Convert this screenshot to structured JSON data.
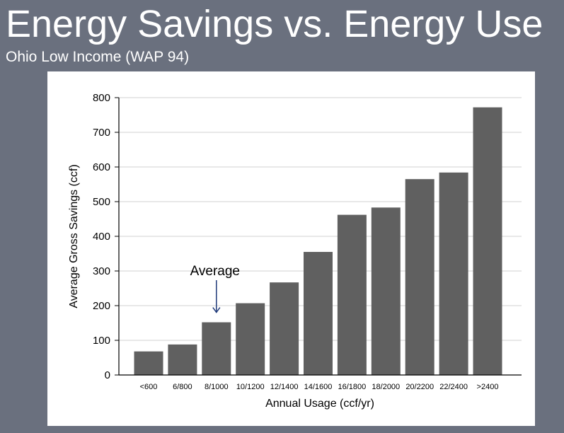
{
  "slide": {
    "title": "Energy Savings vs. Energy Use",
    "subtitle": "Ohio Low Income (WAP 94)"
  },
  "colors": {
    "background": "#6a707e",
    "bar": "#606060",
    "arrow": "#1f3a7a"
  },
  "chart_data": {
    "type": "bar",
    "categories": [
      "<600",
      "6/800",
      "8/1000",
      "10/1200",
      "12/1400",
      "14/1600",
      "16/1800",
      "18/2000",
      "20/2200",
      "22/2400",
      ">2400"
    ],
    "values": [
      68,
      88,
      152,
      207,
      267,
      355,
      462,
      483,
      565,
      584,
      772
    ],
    "xlabel": "Annual Usage (ccf/yr)",
    "ylabel": "Average Gross Savings (ccf)",
    "ylim": [
      0,
      800
    ],
    "yticks": [
      0,
      100,
      200,
      300,
      400,
      500,
      600,
      700,
      800
    ],
    "grid": true,
    "legend": "none",
    "annotations": [
      {
        "text": "Average",
        "category": "8/1000"
      }
    ]
  }
}
